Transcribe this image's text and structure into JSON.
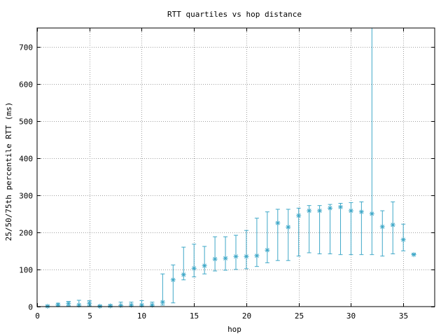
{
  "chart_data": {
    "type": "scatter",
    "title": "RTT quartiles vs hop distance",
    "xlabel": "hop",
    "ylabel": "25/50/75th percentile RTT (ms)",
    "xlim": [
      0,
      38
    ],
    "ylim": [
      0,
      750
    ],
    "xticks": [
      0,
      5,
      10,
      15,
      20,
      25,
      30,
      35
    ],
    "yticks": [
      0,
      100,
      200,
      300,
      400,
      500,
      600,
      700
    ],
    "grid": true,
    "legend": "none",
    "colors": {
      "series": "#3fa8c8",
      "grid": "#a0a0a0",
      "axis": "#000000"
    },
    "series": [
      {
        "marker": "asterisk",
        "errorbars": "quartiles",
        "points": [
          {
            "x": 1,
            "q25": 0,
            "median": 1,
            "q75": 2
          },
          {
            "x": 2,
            "q25": 2,
            "median": 5,
            "q75": 9
          },
          {
            "x": 3,
            "q25": 2,
            "median": 8,
            "q75": 14
          },
          {
            "x": 4,
            "q25": 1,
            "median": 4,
            "q75": 17
          },
          {
            "x": 5,
            "q25": 2,
            "median": 9,
            "q75": 16
          },
          {
            "x": 6,
            "q25": 0,
            "median": 1,
            "q75": 3
          },
          {
            "x": 7,
            "q25": 0,
            "median": 2,
            "q75": 5
          },
          {
            "x": 8,
            "q25": 0,
            "median": 3,
            "q75": 12
          },
          {
            "x": 9,
            "q25": 1,
            "median": 4,
            "q75": 12
          },
          {
            "x": 10,
            "q25": 1,
            "median": 4,
            "q75": 16
          },
          {
            "x": 11,
            "q25": 1,
            "median": 4,
            "q75": 12
          },
          {
            "x": 12,
            "q25": 4,
            "median": 12,
            "q75": 88
          },
          {
            "x": 13,
            "q25": 10,
            "median": 72,
            "q75": 112
          },
          {
            "x": 14,
            "q25": 72,
            "median": 86,
            "q75": 160
          },
          {
            "x": 15,
            "q25": 80,
            "median": 103,
            "q75": 168
          },
          {
            "x": 16,
            "q25": 88,
            "median": 110,
            "q75": 162
          },
          {
            "x": 17,
            "q25": 96,
            "median": 128,
            "q75": 188
          },
          {
            "x": 18,
            "q25": 98,
            "median": 130,
            "q75": 188
          },
          {
            "x": 19,
            "q25": 100,
            "median": 135,
            "q75": 192
          },
          {
            "x": 20,
            "q25": 102,
            "median": 135,
            "q75": 205
          },
          {
            "x": 21,
            "q25": 108,
            "median": 137,
            "q75": 238
          },
          {
            "x": 22,
            "q25": 118,
            "median": 152,
            "q75": 255
          },
          {
            "x": 23,
            "q25": 124,
            "median": 225,
            "q75": 262
          },
          {
            "x": 24,
            "q25": 124,
            "median": 214,
            "q75": 262
          },
          {
            "x": 25,
            "q25": 136,
            "median": 245,
            "q75": 265
          },
          {
            "x": 26,
            "q25": 145,
            "median": 258,
            "q75": 272
          },
          {
            "x": 27,
            "q25": 142,
            "median": 258,
            "q75": 272
          },
          {
            "x": 28,
            "q25": 142,
            "median": 265,
            "q75": 275
          },
          {
            "x": 29,
            "q25": 140,
            "median": 268,
            "q75": 278
          },
          {
            "x": 30,
            "q25": 140,
            "median": 258,
            "q75": 280
          },
          {
            "x": 31,
            "q25": 140,
            "median": 255,
            "q75": 282
          },
          {
            "x": 32,
            "q25": 140,
            "median": 250,
            "q75": 750
          },
          {
            "x": 33,
            "q25": 136,
            "median": 215,
            "q75": 258
          },
          {
            "x": 34,
            "q25": 142,
            "median": 220,
            "q75": 282
          },
          {
            "x": 35,
            "q25": 150,
            "median": 180,
            "q75": 222
          },
          {
            "x": 36,
            "q25": 140,
            "median": 140,
            "q75": 142
          }
        ]
      }
    ]
  }
}
